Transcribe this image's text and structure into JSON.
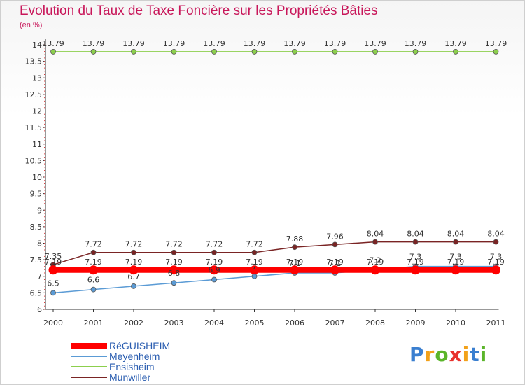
{
  "chart_data": {
    "type": "line",
    "title": "Evolution du Taux de Taxe Foncière sur les Propriétés Bâties",
    "ylabel": "(en %)",
    "xlabel": "",
    "categories": [
      "2000",
      "2001",
      "2002",
      "2003",
      "2004",
      "2005",
      "2006",
      "2007",
      "2008",
      "2009",
      "2010",
      "2011"
    ],
    "ylim": [
      6,
      14
    ],
    "yticks": [
      6,
      6.5,
      7,
      7.5,
      8,
      8.5,
      9,
      9.5,
      10,
      10.5,
      11,
      11.5,
      12,
      12.5,
      13,
      13.5,
      14
    ],
    "series": [
      {
        "name": "RéGUISHEIM",
        "color": "#ff0000",
        "values": [
          7.19,
          7.19,
          7.19,
          7.19,
          7.19,
          7.19,
          7.19,
          7.19,
          7.19,
          7.19,
          7.19,
          7.19
        ],
        "labels": [
          "7.19",
          "7.19",
          "7.19",
          "7.19",
          "7.19",
          "7.19",
          "7.19",
          "7.19",
          "7.19",
          "7.19",
          "7.19",
          "7.19"
        ]
      },
      {
        "name": "Meyenheim",
        "color": "#5b9bd5",
        "values": [
          6.5,
          6.6,
          6.7,
          6.8,
          6.9,
          7.0,
          7.1,
          7.1,
          7.2,
          7.3,
          7.3,
          7.3
        ],
        "labels": [
          "6.5",
          "6.6",
          "6.7",
          "6.8",
          "6.9",
          "7",
          "7.1",
          "7.1",
          "7.2",
          "7.3",
          "7.3",
          "7.3"
        ]
      },
      {
        "name": "Ensisheim",
        "color": "#8ccf4d",
        "values": [
          13.79,
          13.79,
          13.79,
          13.79,
          13.79,
          13.79,
          13.79,
          13.79,
          13.79,
          13.79,
          13.79,
          13.79
        ],
        "labels": [
          "13.79",
          "13.79",
          "13.79",
          "13.79",
          "13.79",
          "13.79",
          "13.79",
          "13.79",
          "13.79",
          "13.79",
          "13.79",
          "13.79"
        ]
      },
      {
        "name": "Munwiller",
        "color": "#7a2424",
        "values": [
          7.35,
          7.72,
          7.72,
          7.72,
          7.72,
          7.72,
          7.88,
          7.96,
          8.04,
          8.04,
          8.04,
          8.04
        ],
        "labels": [
          "7.35",
          "7.72",
          "7.72",
          "7.72",
          "7.72",
          "7.72",
          "7.88",
          "7.96",
          "8.04",
          "8.04",
          "8.04",
          "8.04"
        ]
      }
    ],
    "legend_position": "bottom-left"
  },
  "logo": {
    "text": "Proxiti",
    "letters": [
      "P",
      "r",
      "o",
      "x",
      "i",
      "t",
      "i"
    ],
    "colors": [
      "#3a7fd0",
      "#f2a11a",
      "#5bb52a",
      "#e8322d",
      "#f2a11a",
      "#3a7fd0",
      "#5bb52a"
    ]
  }
}
